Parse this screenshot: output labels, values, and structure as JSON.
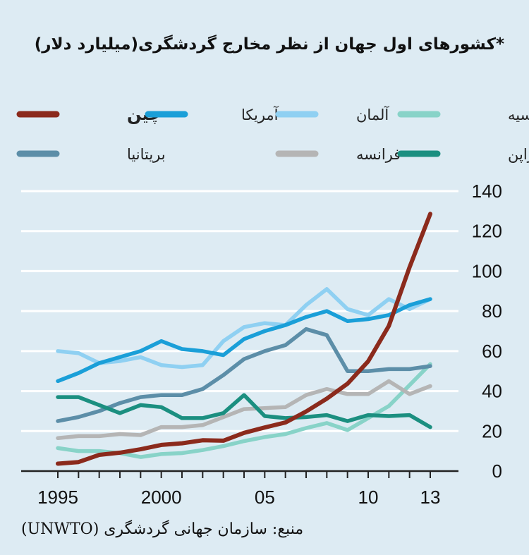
{
  "chart_data": {
    "type": "line",
    "title": "*کشورهای اول جهان از نظر مخارج گردشگری(میلیارد دلار)",
    "source": "منبع: سازمان جهانی گردشگری (UNWTO)",
    "x": [
      1995,
      1996,
      1997,
      1998,
      1999,
      2000,
      2001,
      2002,
      2003,
      2004,
      2005,
      2006,
      2007,
      2008,
      2009,
      2010,
      2011,
      2012,
      2013
    ],
    "xticks": [
      1995,
      2000,
      2005,
      2010,
      2013
    ],
    "xtick_labels": [
      "1995",
      "2000",
      "05",
      "10",
      "13"
    ],
    "ylim": [
      0,
      140
    ],
    "yticks": [
      0,
      20,
      40,
      60,
      80,
      100,
      120,
      140
    ],
    "series": [
      {
        "name": "چین",
        "color": "#8b2a1c",
        "values": [
          3.7,
          4.5,
          8.1,
          9.2,
          10.9,
          13.1,
          13.9,
          15.4,
          15.2,
          19.1,
          21.8,
          24.3,
          29.8,
          36.2,
          43.7,
          54.9,
          72.6,
          102,
          128.6
        ]
      },
      {
        "name": "آمریکا",
        "color": "#1a9fd8",
        "values": [
          45,
          49,
          54,
          57,
          60,
          65,
          61,
          60,
          58,
          66,
          70,
          73,
          77,
          80,
          75,
          76,
          78,
          83,
          86
        ]
      },
      {
        "name": "آلمان",
        "color": "#8fd0f2",
        "values": [
          60,
          59,
          54,
          55,
          57,
          53,
          52,
          53,
          65,
          72,
          74,
          73,
          83,
          91,
          81,
          78,
          86,
          81,
          86
        ]
      },
      {
        "name": "روسیه",
        "color": "#88d3c8",
        "values": [
          11.5,
          10,
          10,
          9,
          7,
          8.5,
          9,
          10.5,
          12.5,
          15,
          17,
          18.5,
          21.5,
          24,
          20.5,
          26.5,
          32.5,
          43,
          53.5
        ]
      },
      {
        "name": "بریتانیا",
        "color": "#5c8ea8",
        "values": [
          25,
          27,
          30,
          34,
          37,
          38,
          38,
          41,
          48,
          56,
          60,
          63,
          71,
          68,
          50,
          50,
          51,
          51,
          52.5
        ]
      },
      {
        "name": "فرانسه",
        "color": "#b5b5b5",
        "values": [
          16.5,
          17.5,
          17.5,
          18.5,
          18,
          22,
          22,
          23,
          27,
          31,
          31.5,
          32,
          38,
          41,
          38.5,
          38.5,
          45,
          38.5,
          42.5
        ]
      },
      {
        "name": "ژاپن",
        "color": "#1b8f80",
        "values": [
          37,
          37,
          33,
          29,
          33,
          32,
          26.5,
          26.5,
          29,
          38,
          27.5,
          26.5,
          27,
          28,
          25,
          28,
          27.5,
          28,
          22
        ]
      }
    ]
  }
}
